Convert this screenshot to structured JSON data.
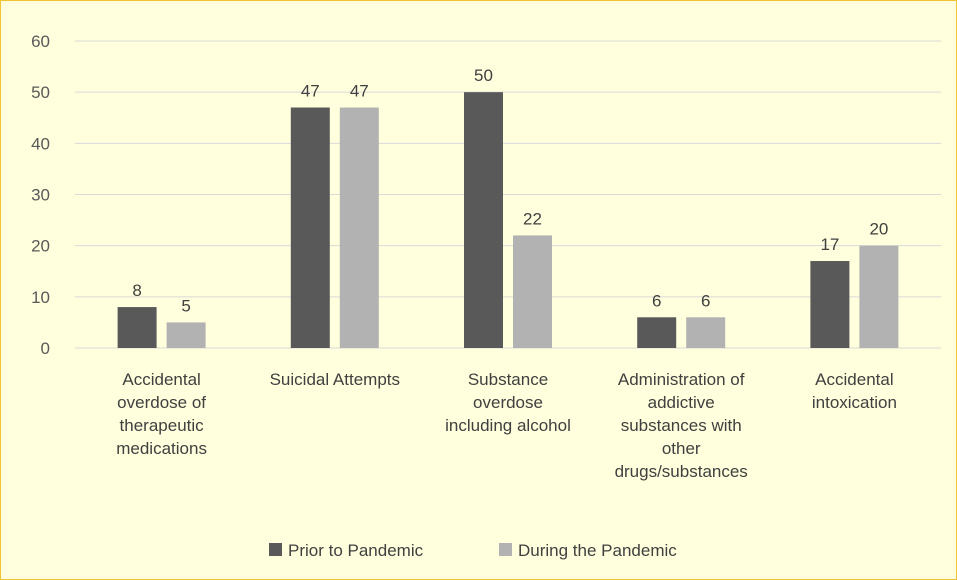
{
  "chart_data": {
    "type": "bar",
    "title": "",
    "xlabel": "",
    "ylabel": "",
    "ylim": [
      0,
      60
    ],
    "yticks": [
      0,
      10,
      20,
      30,
      40,
      50,
      60
    ],
    "grid": true,
    "legend_position": "bottom",
    "categories": [
      [
        "Accidental",
        "overdose of",
        "therapeutic",
        "medications"
      ],
      [
        "Suicidal Attempts"
      ],
      [
        "Substance",
        "overdose",
        "including alcohol"
      ],
      [
        "Administration of",
        "addictive",
        "substances with",
        "other",
        "drugs/substances"
      ],
      [
        "Accidental",
        "intoxication"
      ]
    ],
    "series": [
      {
        "name": "Prior to Pandemic",
        "color": "#595959",
        "values": [
          8,
          47,
          50,
          6,
          17
        ]
      },
      {
        "name": "During the Pandemic",
        "color": "#b2b2b2",
        "values": [
          5,
          47,
          22,
          6,
          20
        ]
      }
    ]
  }
}
